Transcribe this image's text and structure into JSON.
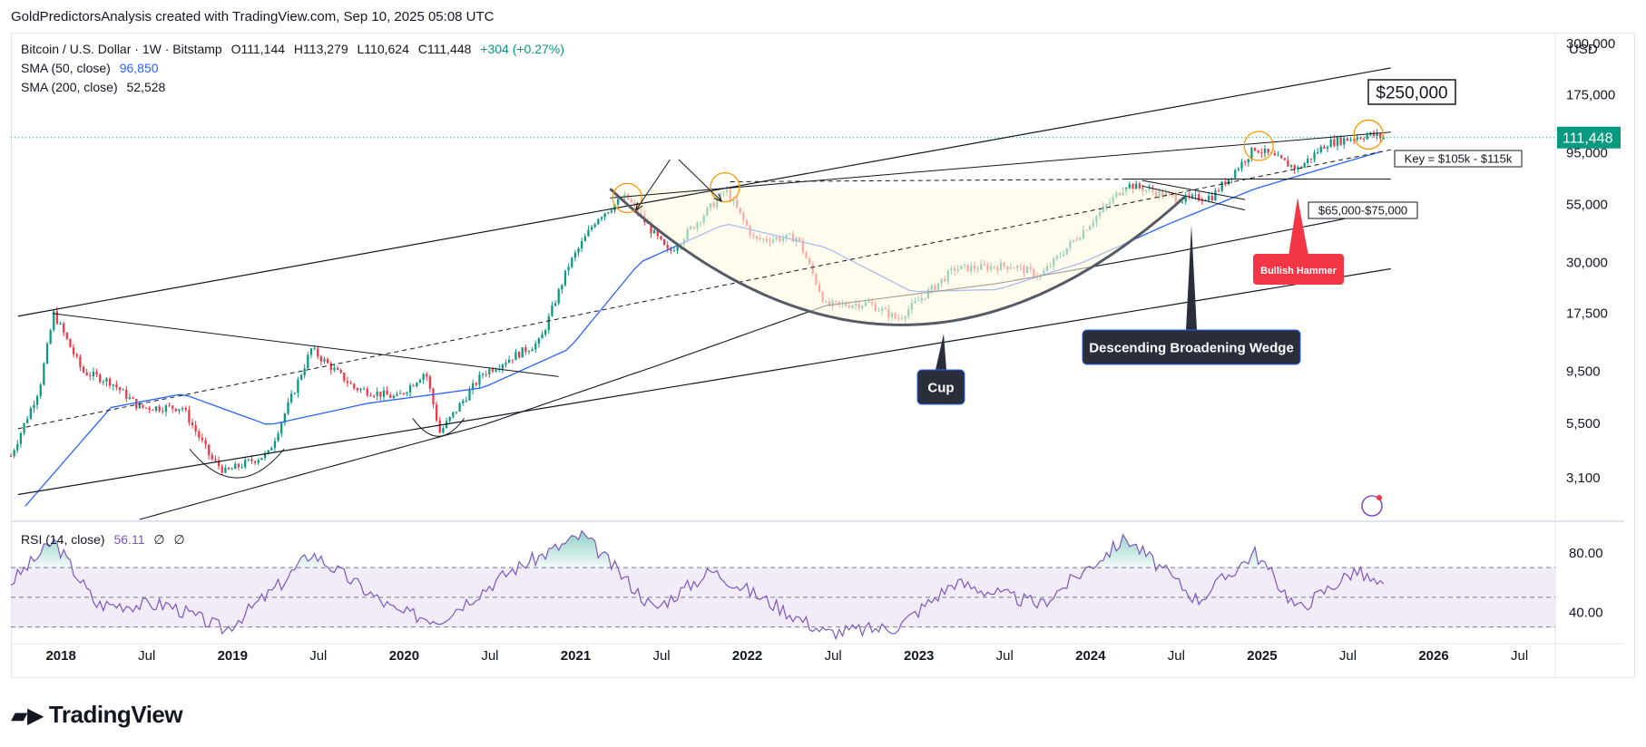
{
  "header": {
    "attribution": "GoldPredictorsAnalysis created with TradingView.com, Sep 10, 2025 05:08 UTC"
  },
  "legend": {
    "symbol": "Bitcoin / U.S. Dollar · 1W · Bitstamp",
    "open": "O111,144",
    "high": "H113,279",
    "low": "L110,624",
    "close": "C111,448",
    "change": "+304 (+0.27%)",
    "sma50_label": "SMA (50, close)",
    "sma50_value": "96,850",
    "sma200_label": "SMA (200, close)",
    "sma200_value": "52,528",
    "rsi_label": "RSI (14, close)",
    "rsi_value": "56.11",
    "rsi_extra1": "∅",
    "rsi_extra2": "∅"
  },
  "price_axis": {
    "currency": "USD",
    "ticks": [
      "300,000",
      "175,000",
      "95,000",
      "55,000",
      "30,000",
      "17,500",
      "9,500",
      "5,500",
      "3,100"
    ],
    "current_price": "111,448"
  },
  "rsi_axis": {
    "ticks": [
      "80.00",
      "40.00"
    ]
  },
  "time_axis": {
    "ticks": [
      "2018",
      "Jul",
      "2019",
      "Jul",
      "2020",
      "Jul",
      "2021",
      "Jul",
      "2022",
      "Jul",
      "2023",
      "Jul",
      "2024",
      "Jul",
      "2025",
      "Jul",
      "2026",
      "Jul"
    ]
  },
  "annotations": {
    "target": "$250,000",
    "key_zone": "Key = $105k - $115k",
    "support_zone": "$65,000-$75,000",
    "cup": "Cup",
    "wedge": "Descending Broadening Wedge",
    "hammer": "Bullish Hammer"
  },
  "brand": {
    "logo_text": "TradingView"
  },
  "colors": {
    "up": "#089981",
    "down": "#f23645",
    "sma50": "#2962ff",
    "sma200": "#131722",
    "rsi": "#7e57c2",
    "rsi_band": "#ede7f6",
    "hammer": "#f23645",
    "label_dark": "#2a2e39"
  },
  "chart_data": {
    "type": "candlestick",
    "title": "",
    "symbol": "Bitcoin / U.S. Dollar",
    "interval": "1W",
    "scale": "log",
    "ylim": [
      2000,
      330000
    ],
    "x_range": [
      "2017-09",
      "2026-09"
    ],
    "ohlc_last": {
      "open": 111144,
      "high": 113279,
      "low": 110624,
      "close": 111448,
      "change": 304,
      "change_pct": 0.27
    },
    "close_path": [
      {
        "date": "2017-09",
        "close": 3900
      },
      {
        "date": "2017-11",
        "close": 8000
      },
      {
        "date": "2017-12",
        "close": 17500
      },
      {
        "date": "2018-02",
        "close": 9500
      },
      {
        "date": "2018-04",
        "close": 8500
      },
      {
        "date": "2018-06",
        "close": 6500
      },
      {
        "date": "2018-09",
        "close": 6500
      },
      {
        "date": "2018-11",
        "close": 3800
      },
      {
        "date": "2018-12",
        "close": 3300
      },
      {
        "date": "2019-03",
        "close": 4000
      },
      {
        "date": "2019-06",
        "close": 12000
      },
      {
        "date": "2019-09",
        "close": 8000
      },
      {
        "date": "2019-12",
        "close": 7200
      },
      {
        "date": "2020-02",
        "close": 9500
      },
      {
        "date": "2020-03",
        "close": 5000
      },
      {
        "date": "2020-06",
        "close": 9300
      },
      {
        "date": "2020-10",
        "close": 13000
      },
      {
        "date": "2020-12",
        "close": 29000
      },
      {
        "date": "2021-02",
        "close": 48000
      },
      {
        "date": "2021-04",
        "close": 60000
      },
      {
        "date": "2021-07",
        "close": 33000
      },
      {
        "date": "2021-11",
        "close": 64000
      },
      {
        "date": "2022-01",
        "close": 38000
      },
      {
        "date": "2022-04",
        "close": 39000
      },
      {
        "date": "2022-06",
        "close": 19000
      },
      {
        "date": "2022-09",
        "close": 19500
      },
      {
        "date": "2022-11",
        "close": 16500
      },
      {
        "date": "2023-03",
        "close": 28000
      },
      {
        "date": "2023-07",
        "close": 29000
      },
      {
        "date": "2023-09",
        "close": 26000
      },
      {
        "date": "2023-12",
        "close": 42000
      },
      {
        "date": "2024-03",
        "close": 68000
      },
      {
        "date": "2024-07",
        "close": 58000
      },
      {
        "date": "2024-09",
        "close": 60000
      },
      {
        "date": "2024-12",
        "close": 100000
      },
      {
        "date": "2025-03",
        "close": 80000
      },
      {
        "date": "2025-05",
        "close": 105000
      },
      {
        "date": "2025-08",
        "close": 115000
      },
      {
        "date": "2025-09",
        "close": 111448
      }
    ],
    "sma50_path": [
      {
        "date": "2017-10",
        "value": 2300
      },
      {
        "date": "2018-04",
        "value": 6500
      },
      {
        "date": "2018-09",
        "value": 7500
      },
      {
        "date": "2019-03",
        "value": 5400
      },
      {
        "date": "2019-10",
        "value": 6800
      },
      {
        "date": "2020-06",
        "value": 8000
      },
      {
        "date": "2020-12",
        "value": 12000
      },
      {
        "date": "2021-05",
        "value": 30000
      },
      {
        "date": "2021-11",
        "value": 45000
      },
      {
        "date": "2022-06",
        "value": 35000
      },
      {
        "date": "2022-12",
        "value": 22000
      },
      {
        "date": "2023-06",
        "value": 22500
      },
      {
        "date": "2023-12",
        "value": 30000
      },
      {
        "date": "2024-06",
        "value": 45000
      },
      {
        "date": "2024-12",
        "value": 65000
      },
      {
        "date": "2025-06",
        "value": 85000
      },
      {
        "date": "2025-09",
        "value": 96850
      }
    ],
    "sma200_path": [
      {
        "date": "2018-06",
        "value": 2000
      },
      {
        "date": "2019-06",
        "value": 3300
      },
      {
        "date": "2020-06",
        "value": 5400
      },
      {
        "date": "2021-06",
        "value": 10000
      },
      {
        "date": "2022-06",
        "value": 19000
      },
      {
        "date": "2023-06",
        "value": 24000
      },
      {
        "date": "2024-06",
        "value": 33000
      },
      {
        "date": "2025-06",
        "value": 47000
      },
      {
        "date": "2025-09",
        "value": 52528
      }
    ],
    "rsi": {
      "period": 14,
      "last": 56.11,
      "ylim": [
        20,
        100
      ],
      "bands": [
        30,
        50,
        70
      ],
      "path": [
        {
          "date": "2017-09",
          "v": 60
        },
        {
          "date": "2017-12",
          "v": 88
        },
        {
          "date": "2018-03",
          "v": 45
        },
        {
          "date": "2018-08",
          "v": 45
        },
        {
          "date": "2018-12",
          "v": 28
        },
        {
          "date": "2019-04",
          "v": 60
        },
        {
          "date": "2019-06",
          "v": 80
        },
        {
          "date": "2019-12",
          "v": 40
        },
        {
          "date": "2020-03",
          "v": 35
        },
        {
          "date": "2020-08",
          "v": 68
        },
        {
          "date": "2021-01",
          "v": 92
        },
        {
          "date": "2021-06",
          "v": 42
        },
        {
          "date": "2021-10",
          "v": 68
        },
        {
          "date": "2022-06",
          "v": 26
        },
        {
          "date": "2022-11",
          "v": 30
        },
        {
          "date": "2023-03",
          "v": 60
        },
        {
          "date": "2023-09",
          "v": 45
        },
        {
          "date": "2024-03",
          "v": 90
        },
        {
          "date": "2024-08",
          "v": 48
        },
        {
          "date": "2024-12",
          "v": 80
        },
        {
          "date": "2025-03",
          "v": 42
        },
        {
          "date": "2025-07",
          "v": 68
        },
        {
          "date": "2025-09",
          "v": 56.11
        }
      ]
    }
  }
}
